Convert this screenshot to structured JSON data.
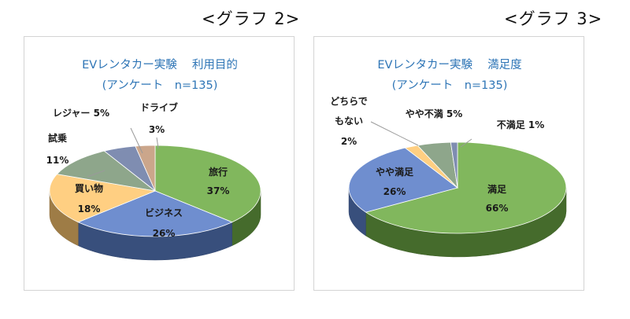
{
  "graph_labels": [
    "<グラフ 2>",
    "<グラフ 3>"
  ],
  "chart_data": [
    {
      "type": "pie",
      "title": "EVレンタカー実験　 利用目的",
      "subtitle": "(アンケート　n=135)",
      "slices": [
        {
          "name": "旅行",
          "value": 37,
          "label": "37%",
          "color": "#70ad47"
        },
        {
          "name": "ビジネス",
          "value": 26,
          "label": "26%",
          "color": "#5b7fc8"
        },
        {
          "name": "買い物",
          "value": 18,
          "label": "18%",
          "color": "#ffc871"
        },
        {
          "name": "試乗",
          "value": 11,
          "label": "11%",
          "color": "#7f9a7b"
        },
        {
          "name": "レジャー",
          "value": 5,
          "label": "5%",
          "color": "#6e7ea6"
        },
        {
          "name": "ドライブ",
          "value": 3,
          "label": "3%",
          "color": "#c49a7b"
        }
      ]
    },
    {
      "type": "pie",
      "title": "EVレンタカー実験　 満足度",
      "subtitle": "(アンケート　n=135)",
      "slices": [
        {
          "name": "満足",
          "value": 66,
          "label": "66%",
          "color": "#70ad47"
        },
        {
          "name": "やや満足",
          "value": 26,
          "label": "26%",
          "color": "#5b7fc8"
        },
        {
          "name": "どちらでもない",
          "value": 2,
          "label": "2%",
          "color": "#ffc871"
        },
        {
          "name": "やや不満",
          "value": 5,
          "label": "5%",
          "color": "#7f9a7b"
        },
        {
          "name": "不満足",
          "value": 1,
          "label": "1%",
          "color": "#6e7ea6"
        }
      ]
    }
  ],
  "labels": {
    "c0": {
      "ryoko": "旅行",
      "ryoko_pct": "37%",
      "biz": "ビジネス",
      "biz_pct": "26%",
      "kaimono": "買い物",
      "kaimono_pct": "18%",
      "shijo": "試乗",
      "shijo_pct": "11%",
      "leisure": "レジャー 5%",
      "drive": "ドライブ",
      "drive_pct": "3%"
    },
    "c1": {
      "manzoku": "満足",
      "manzoku_pct": "66%",
      "yaya": "やや満足",
      "yaya_pct": "26%",
      "dochira1": "どちらで",
      "dochira2": "もない",
      "dochira_pct": "2%",
      "yayafuman": "やや不満 5%",
      "fuman": "不満足 1%"
    }
  }
}
